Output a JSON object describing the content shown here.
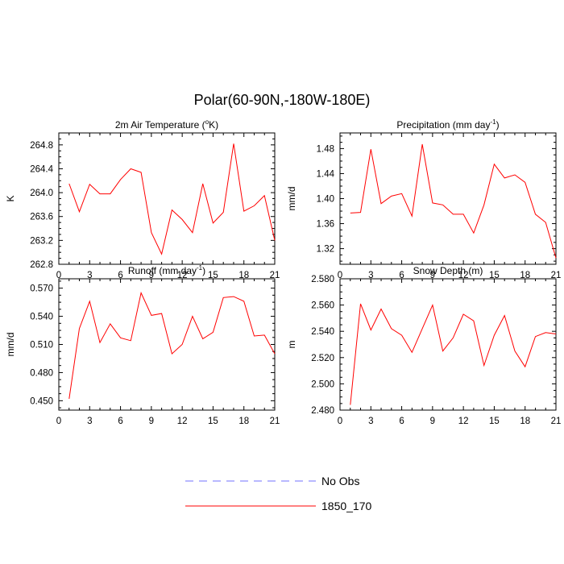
{
  "figure_title": "Polar(60-90N,-180W-180E)",
  "legend": [
    {
      "label": "No Obs",
      "color": "#7070ff",
      "style": "dashed"
    },
    {
      "label": "1850_170",
      "color": "#ff0000",
      "style": "solid"
    }
  ],
  "chart_data": [
    {
      "type": "line",
      "title": "2m Air Temperature (°K)",
      "title_parts": [
        "2m Air Temperature (",
        "o",
        "K)"
      ],
      "xlabel": "",
      "ylabel": "K",
      "xlim": [
        0,
        21
      ],
      "ylim": [
        262.8,
        265.0
      ],
      "xticks": [
        "0",
        "3",
        "6",
        "9",
        "12",
        "15",
        "18",
        "21"
      ],
      "yticks": [
        "262.8",
        "263.2",
        "263.6",
        "264.0",
        "264.4",
        "264.8"
      ],
      "x": [
        1,
        2,
        3,
        4,
        5,
        6,
        7,
        8,
        9,
        10,
        11,
        12,
        13,
        14,
        15,
        16,
        17,
        18,
        19,
        20,
        21
      ],
      "series": [
        {
          "name": "1850_170",
          "color": "#ff0000",
          "values": [
            264.15,
            263.68,
            264.14,
            263.98,
            263.98,
            264.22,
            264.4,
            264.34,
            263.33,
            262.97,
            263.71,
            263.55,
            263.33,
            264.15,
            263.49,
            263.67,
            264.82,
            263.69,
            263.78,
            263.95,
            263.2
          ]
        }
      ]
    },
    {
      "type": "line",
      "title": "Precipitation (mm day-1)",
      "title_parts": [
        "Precipitation (mm day",
        "-1",
        ")"
      ],
      "xlabel": "",
      "ylabel": "mm/d",
      "xlim": [
        0,
        21
      ],
      "ylim": [
        1.295,
        1.505
      ],
      "xticks": [
        "0",
        "3",
        "6",
        "9",
        "12",
        "15",
        "18",
        "21"
      ],
      "yticks": [
        "1.32",
        "1.36",
        "1.40",
        "1.44",
        "1.48"
      ],
      "x": [
        1,
        2,
        3,
        4,
        5,
        6,
        7,
        8,
        9,
        10,
        11,
        12,
        13,
        14,
        15,
        16,
        17,
        18,
        19,
        20,
        21
      ],
      "series": [
        {
          "name": "1850_170",
          "color": "#ff0000",
          "values": [
            1.377,
            1.378,
            1.479,
            1.392,
            1.404,
            1.408,
            1.372,
            1.487,
            1.393,
            1.39,
            1.375,
            1.375,
            1.345,
            1.39,
            1.455,
            1.433,
            1.438,
            1.426,
            1.375,
            1.362,
            1.305
          ]
        }
      ]
    },
    {
      "type": "line",
      "title": "Runoff (mm day-1)",
      "title_parts": [
        "Runoff (mm day",
        "-1",
        ")"
      ],
      "xlabel": "",
      "ylabel": "mm/d",
      "xlim": [
        0,
        21
      ],
      "ylim": [
        0.44,
        0.58
      ],
      "xticks": [
        "0",
        "3",
        "6",
        "9",
        "12",
        "15",
        "18",
        "21"
      ],
      "yticks": [
        "0.450",
        "0.480",
        "0.510",
        "0.540",
        "0.570"
      ],
      "x": [
        1,
        2,
        3,
        4,
        5,
        6,
        7,
        8,
        9,
        10,
        11,
        12,
        13,
        14,
        15,
        16,
        17,
        18,
        19,
        20,
        21
      ],
      "series": [
        {
          "name": "1850_170",
          "color": "#ff0000",
          "values": [
            0.452,
            0.527,
            0.556,
            0.512,
            0.532,
            0.517,
            0.514,
            0.565,
            0.541,
            0.543,
            0.5,
            0.51,
            0.54,
            0.516,
            0.523,
            0.56,
            0.561,
            0.556,
            0.519,
            0.52,
            0.5
          ]
        }
      ]
    },
    {
      "type": "line",
      "title": "Snow Depth (m)",
      "title_parts": [
        "Snow Depth (m)"
      ],
      "xlabel": "",
      "ylabel": "m",
      "xlim": [
        0,
        21
      ],
      "ylim": [
        2.48,
        2.58
      ],
      "xticks": [
        "0",
        "3",
        "6",
        "9",
        "12",
        "15",
        "18",
        "21"
      ],
      "yticks": [
        "2.480",
        "2.500",
        "2.520",
        "2.540",
        "2.560",
        "2.580"
      ],
      "x": [
        1,
        2,
        3,
        4,
        5,
        6,
        7,
        8,
        9,
        10,
        11,
        12,
        13,
        14,
        15,
        16,
        17,
        18,
        19,
        20,
        21
      ],
      "series": [
        {
          "name": "1850_170",
          "color": "#ff0000",
          "values": [
            2.484,
            2.561,
            2.541,
            2.557,
            2.542,
            2.537,
            2.524,
            2.542,
            2.56,
            2.525,
            2.535,
            2.553,
            2.548,
            2.514,
            2.537,
            2.552,
            2.525,
            2.513,
            2.536,
            2.539,
            2.538
          ]
        }
      ]
    }
  ]
}
